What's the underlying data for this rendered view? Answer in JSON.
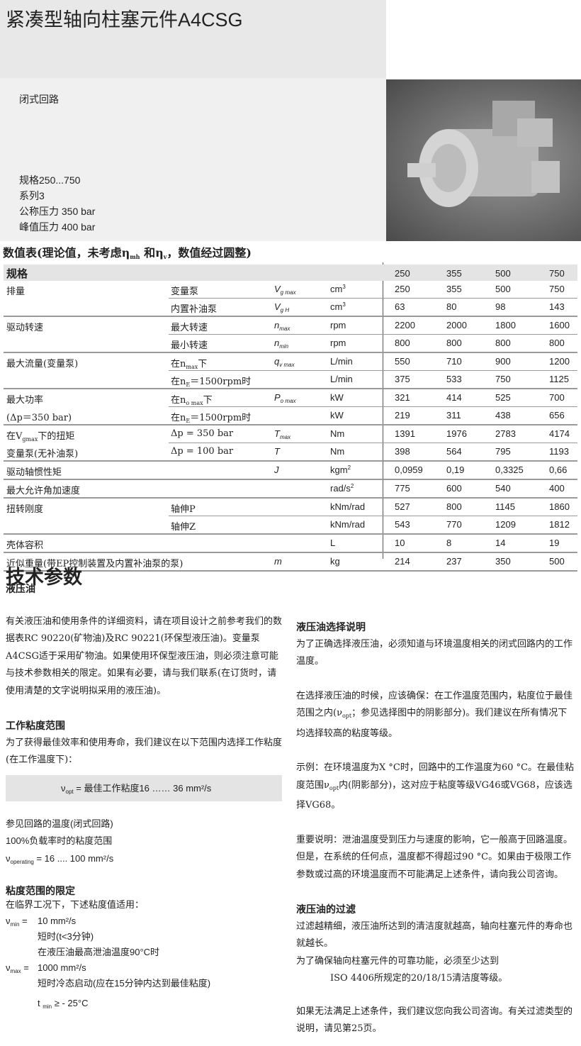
{
  "header": {
    "title": "紧凑型轴向柱塞元件A4CSG",
    "circuit": "闭式回路",
    "specs": [
      "规格250...750",
      "系列3",
      "公称压力 350 bar",
      "峰值压力 400 bar"
    ]
  },
  "photo": {
    "subject": "axial-piston-pump-photo"
  },
  "table": {
    "title": [
      {
        "t": "数值表(理论值，未考虑η"
      },
      {
        "sub": "mh"
      },
      {
        "t": " 和η"
      },
      {
        "sub": "v"
      },
      {
        "t": "，数值经过圆整)"
      }
    ],
    "head": {
      "label": "规格",
      "sizes": [
        "250",
        "355",
        "500",
        "750"
      ]
    },
    "rows": [
      {
        "c1": [
          {
            "t": "排量"
          }
        ],
        "c2": [
          {
            "t": "变量泵"
          }
        ],
        "sym": [
          {
            "t": "V"
          },
          {
            "sub": "g max"
          }
        ],
        "unit": [
          {
            "t": "cm"
          },
          {
            "sup": "3"
          }
        ],
        "v": [
          "250",
          "355",
          "500",
          "750"
        ]
      },
      {
        "c1": [],
        "c2": [
          {
            "t": "内置补油泵"
          }
        ],
        "sym": [
          {
            "t": "V"
          },
          {
            "sub": "g H"
          }
        ],
        "unit": [
          {
            "t": "cm"
          },
          {
            "sup": "3"
          }
        ],
        "v": [
          "63",
          "80",
          "98",
          "143"
        ],
        "end": true
      },
      {
        "c1": [
          {
            "t": "驱动转速"
          }
        ],
        "c2": [
          {
            "t": "最大转速"
          }
        ],
        "sym": [
          {
            "t": "n"
          },
          {
            "sub": "max"
          }
        ],
        "unit": [
          {
            "t": "rpm"
          }
        ],
        "v": [
          "2200",
          "2000",
          "1800",
          "1600"
        ]
      },
      {
        "c1": [],
        "c2": [
          {
            "t": "最小转速"
          }
        ],
        "sym": [
          {
            "t": "n"
          },
          {
            "sub": "min"
          }
        ],
        "unit": [
          {
            "t": "rpm"
          }
        ],
        "v": [
          "800",
          "800",
          "800",
          "800"
        ],
        "end": true
      },
      {
        "c1": [
          {
            "t": "最大流量(变量泵)"
          }
        ],
        "c2": [
          {
            "t": "在n"
          },
          {
            "sub": "max"
          },
          {
            "t": "下"
          }
        ],
        "sym": [
          {
            "t": "q"
          },
          {
            "sub": "v max"
          }
        ],
        "unit": [
          {
            "t": "L/min"
          }
        ],
        "v": [
          "550",
          "710",
          "900",
          "1200"
        ]
      },
      {
        "c1": [],
        "c2": [
          {
            "t": "在n"
          },
          {
            "sub": "E"
          },
          {
            "t": "＝1500rpm时"
          }
        ],
        "sym": [],
        "unit": [
          {
            "t": "L/min"
          }
        ],
        "v": [
          "375",
          "533",
          "750",
          "1125"
        ],
        "end": true
      },
      {
        "c1": [
          {
            "t": "最大功率"
          }
        ],
        "c2": [
          {
            "t": "在n"
          },
          {
            "sub": "o max"
          },
          {
            "t": "下"
          }
        ],
        "sym": [
          {
            "t": "P"
          },
          {
            "sub": "o max"
          }
        ],
        "unit": [
          {
            "t": "kW"
          }
        ],
        "v": [
          "321",
          "414",
          "525",
          "700"
        ]
      },
      {
        "c1": [
          {
            "t": "(Δp＝350 bar)"
          }
        ],
        "c2": [
          {
            "t": "在n"
          },
          {
            "sub": "E"
          },
          {
            "t": "＝1500rpm时"
          }
        ],
        "sym": [],
        "unit": [
          {
            "t": "kW"
          }
        ],
        "v": [
          "219",
          "311",
          "438",
          "656"
        ],
        "end": true
      },
      {
        "c1": [
          {
            "t": "在V"
          },
          {
            "sub": "gmax"
          },
          {
            "t": "下的扭矩"
          }
        ],
        "c2": [
          {
            "t": "Δp = 350 bar"
          }
        ],
        "sym": [
          {
            "t": "T"
          },
          {
            "sub": "max"
          }
        ],
        "unit": [
          {
            "t": "Nm"
          }
        ],
        "v": [
          "1391",
          "1976",
          "2783",
          "4174"
        ]
      },
      {
        "c1": [
          {
            "t": "变量泵(无补油泵)"
          }
        ],
        "c2": [
          {
            "t": "Δp = 100 bar"
          }
        ],
        "sym": [
          {
            "t": "T"
          }
        ],
        "unit": [
          {
            "t": "Nm"
          }
        ],
        "v": [
          "398",
          "564",
          "795",
          "1193"
        ],
        "end": true
      },
      {
        "c1": [
          {
            "t": "驱动轴惯性矩"
          }
        ],
        "c2": [],
        "sym": [
          {
            "t": "J"
          }
        ],
        "unit": [
          {
            "t": "kgm"
          },
          {
            "sup": "2"
          }
        ],
        "v": [
          "0,0959",
          "0,19",
          "0,3325",
          "0,66"
        ],
        "end": true
      },
      {
        "c1": [
          {
            "t": "最大允许角加速度"
          }
        ],
        "c2": [],
        "sym": [],
        "unit": [
          {
            "t": "rad/s"
          },
          {
            "sup": "2"
          }
        ],
        "v": [
          "775",
          "600",
          "540",
          "400"
        ],
        "end": true
      },
      {
        "c1": [
          {
            "t": "扭转刚度"
          }
        ],
        "c2": [
          {
            "t": "轴伸P"
          }
        ],
        "sym": [],
        "unit": [
          {
            "t": "kNm/rad"
          }
        ],
        "v": [
          "527",
          "800",
          "1145",
          "1860"
        ]
      },
      {
        "c1": [],
        "c2": [
          {
            "t": "轴伸Z"
          }
        ],
        "sym": [],
        "unit": [
          {
            "t": "kNm/rad"
          }
        ],
        "v": [
          "543",
          "770",
          "1209",
          "1812"
        ],
        "end": true
      },
      {
        "c1": [
          {
            "t": "壳体容积"
          }
        ],
        "c2": [],
        "sym": [],
        "unit": [
          {
            "t": "L"
          }
        ],
        "v": [
          "10",
          "8",
          "14",
          "19"
        ],
        "end": true
      },
      {
        "c1": [
          {
            "t": "近似重量(带EP控制装置及内置补油泵的泵)"
          }
        ],
        "c2": [],
        "sym": [
          {
            "t": "m"
          }
        ],
        "unit": [
          {
            "t": "kg"
          }
        ],
        "v": [
          "214",
          "237",
          "350",
          "500"
        ],
        "end": true
      }
    ]
  },
  "tech": {
    "title": "技术参数",
    "left": {
      "h_oil": "液压油",
      "p_oil": "有关液压油和使用条件的详细资料，请在项目设计之前参考我们的数据表RC 90220(矿物油)及RC 90221(环保型液压油)。变量泵A4CSG适于采用矿物油。如果使用环保型液压油，则必须注意可能与技术参数相关的限定。如果有必要，请与我们联系(在订货时，请使用清楚的文字说明拟采用的液压油)。",
      "h_visc": "工作粘度范围",
      "p_visc": "为了获得最佳效率和使用寿命，我们建议在以下范围内选择工作粘度(在工作温度下)：",
      "box": [
        {
          "t": "ν"
        },
        {
          "sub": "opt"
        },
        {
          "t": " = 最佳工作粘度16 …… 36 mm²/s"
        }
      ],
      "see": "参见回路的温度(闭式回路)",
      "full": "100%负载率时的粘度范围",
      "operating": [
        {
          "t": "ν"
        },
        {
          "sub": "operating"
        },
        {
          "t": " = 16 .... 100 mm²/s"
        }
      ],
      "h_limit": "粘度范围的限定",
      "p_limit": "在临界工况下，下述粘度值适用：",
      "vmin_label": [
        {
          "t": "ν"
        },
        {
          "sub": "min"
        },
        {
          "t": " ="
        }
      ],
      "vmin_lines": [
        "10 mm²/s",
        "短时(t<3分钟)",
        "在液压油最高泄油温度90°C时"
      ],
      "vmax_label": [
        {
          "t": "ν"
        },
        {
          "sub": "max"
        },
        {
          "t": " ="
        }
      ],
      "vmax_lines": [
        "1000 mm²/s",
        "短时冷态启动(应在15分钟内达到最佳粘度)"
      ],
      "tmin": [
        {
          "t": "t "
        },
        {
          "sub": "min"
        },
        {
          "t": " ≥ - 25°C"
        }
      ]
    },
    "right": {
      "h_select": "液压油选择说明",
      "p1": "为了正确选择液压油，必须知道与环境温度相关的闭式回路内的工作温度。",
      "p2": [
        {
          "t": "在选择液压油的时候，应该确保：在工作温度范围内，粘度位于最佳范围之内(ν"
        },
        {
          "sub": "opt"
        },
        {
          "t": "；参见选择图中的阴影部分)。我们建议在所有情况下均选择较高的粘度等级。"
        }
      ],
      "p3": [
        {
          "t": "示例：在环境温度为X °C时，回路中的工作温度为60 °C。在最佳粘度范围ν"
        },
        {
          "sub": "opt"
        },
        {
          "t": "内(阴影部分)，这对应于粘度等级VG46或VG68，应该选择VG68。"
        }
      ],
      "p4": "重要说明：泄油温度受到压力与速度的影响，它一般高于回路温度。但是，在系统的任何点，温度都不得超过90 °C。如果由于极限工作参数或过高的环境温度而不可能满足上述条件，请向我公司咨询。",
      "h_filter": "液压油的过滤",
      "p5": "过滤越精细，液压油所达到的清洁度就越高，轴向柱塞元件的寿命也就越长。",
      "p6": "为了确保轴向柱塞元件的可靠功能，必须至少达到",
      "p7": "ISO 4406所规定的20/18/15清洁度等级。",
      "p8": "如果无法满足上述条件，我们建议您向我公司咨询。有关过滤类型的说明，请见第25页。"
    }
  }
}
